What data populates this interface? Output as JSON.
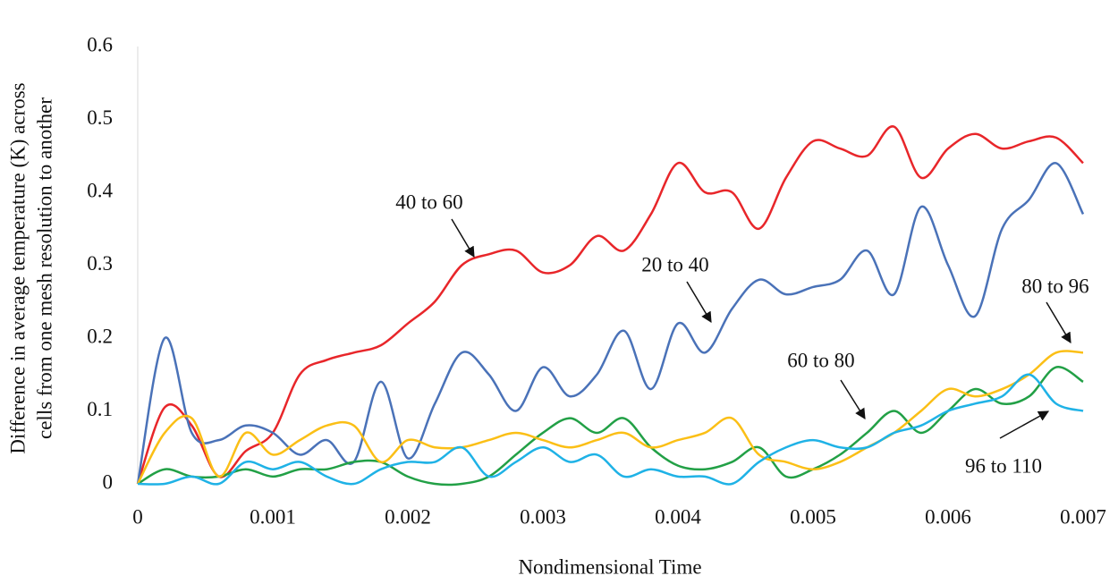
{
  "chart_data": {
    "type": "line",
    "xlabel": "Nondimensional Time",
    "ylabel": [
      "Difference in average temperature (K) across",
      "cells from one mesh resolution to another"
    ],
    "x": [
      0,
      0.0002,
      0.0004,
      0.0006,
      0.0008,
      0.001,
      0.0012,
      0.0014,
      0.0016,
      0.0018,
      0.002,
      0.0022,
      0.0024,
      0.0026,
      0.0028,
      0.003,
      0.0032,
      0.0034,
      0.0036,
      0.0038,
      0.004,
      0.0042,
      0.0044,
      0.0046,
      0.0048,
      0.005,
      0.0052,
      0.0054,
      0.0056,
      0.0058,
      0.006,
      0.0062,
      0.0064,
      0.0066,
      0.0068,
      0.007
    ],
    "xlim": [
      0,
      0.007
    ],
    "xticks": [
      0,
      0.001,
      0.002,
      0.003,
      0.004,
      0.005,
      0.006,
      0.007
    ],
    "ylim": [
      0,
      0.6
    ],
    "yticks": [
      0,
      0.1,
      0.2,
      0.3,
      0.4,
      0.5,
      0.6
    ],
    "grid": false,
    "series": [
      {
        "name": "40 to 60",
        "color": "#e8262a",
        "values": [
          0,
          0.105,
          0.08,
          0.01,
          0.045,
          0.07,
          0.15,
          0.17,
          0.18,
          0.19,
          0.22,
          0.25,
          0.3,
          0.315,
          0.32,
          0.29,
          0.3,
          0.34,
          0.32,
          0.37,
          0.44,
          0.4,
          0.4,
          0.35,
          0.42,
          0.47,
          0.46,
          0.45,
          0.49,
          0.42,
          0.46,
          0.48,
          0.46,
          0.47,
          0.475,
          0.44
        ]
      },
      {
        "name": "20 to 40",
        "color": "#4a72b8",
        "values": [
          0,
          0.2,
          0.07,
          0.06,
          0.08,
          0.07,
          0.04,
          0.06,
          0.03,
          0.14,
          0.035,
          0.11,
          0.18,
          0.15,
          0.1,
          0.16,
          0.12,
          0.15,
          0.21,
          0.13,
          0.22,
          0.18,
          0.24,
          0.28,
          0.26,
          0.27,
          0.28,
          0.32,
          0.26,
          0.38,
          0.3,
          0.23,
          0.35,
          0.39,
          0.44,
          0.37
        ]
      },
      {
        "name": "60 to 80",
        "color": "#22a046",
        "values": [
          0,
          0.02,
          0.01,
          0.01,
          0.02,
          0.01,
          0.02,
          0.02,
          0.03,
          0.03,
          0.01,
          0,
          0,
          0.01,
          0.04,
          0.07,
          0.09,
          0.07,
          0.09,
          0.05,
          0.025,
          0.02,
          0.03,
          0.05,
          0.01,
          0.02,
          0.04,
          0.07,
          0.1,
          0.07,
          0.1,
          0.13,
          0.11,
          0.12,
          0.16,
          0.14
        ]
      },
      {
        "name": "80 to 96",
        "color": "#fbbf16",
        "values": [
          0,
          0.07,
          0.09,
          0.01,
          0.07,
          0.04,
          0.06,
          0.08,
          0.08,
          0.03,
          0.06,
          0.05,
          0.05,
          0.06,
          0.07,
          0.06,
          0.05,
          0.06,
          0.07,
          0.05,
          0.06,
          0.07,
          0.09,
          0.04,
          0.03,
          0.02,
          0.03,
          0.05,
          0.07,
          0.1,
          0.13,
          0.12,
          0.13,
          0.15,
          0.18,
          0.18
        ]
      },
      {
        "name": "96 to 110",
        "color": "#1fb2e6",
        "values": [
          0,
          0,
          0.01,
          0,
          0.03,
          0.02,
          0.03,
          0.01,
          0,
          0.02,
          0.03,
          0.03,
          0.05,
          0.01,
          0.03,
          0.05,
          0.03,
          0.04,
          0.01,
          0.02,
          0.01,
          0.01,
          0,
          0.03,
          0.05,
          0.06,
          0.05,
          0.05,
          0.07,
          0.08,
          0.1,
          0.11,
          0.12,
          0.15,
          0.11,
          0.1
        ]
      }
    ]
  }
}
